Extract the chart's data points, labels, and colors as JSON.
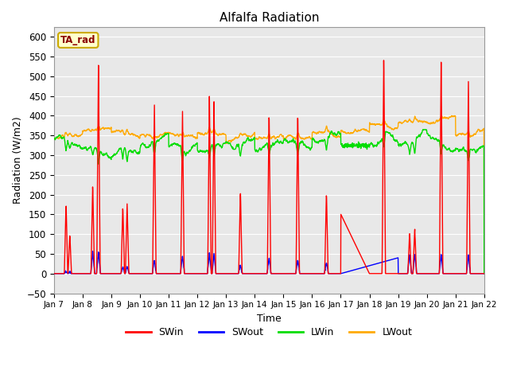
{
  "title": "Alfalfa Radiation",
  "xlabel": "Time",
  "ylabel": "Radiation (W/m2)",
  "ylim": [
    -50,
    625
  ],
  "yticks": [
    -50,
    0,
    50,
    100,
    150,
    200,
    250,
    300,
    350,
    400,
    450,
    500,
    550,
    600
  ],
  "annotation_text": "TA_rad",
  "legend": [
    "SWin",
    "SWout",
    "LWin",
    "LWout"
  ],
  "line_colors": {
    "SWin": "#ff0000",
    "SWout": "#0000ff",
    "LWin": "#00dd00",
    "LWout": "#ffaa00"
  },
  "line_widths": {
    "SWin": 1.0,
    "SWout": 1.0,
    "LWin": 1.0,
    "LWout": 1.0
  },
  "xtick_labels": [
    "Jan 7",
    "Jan 8",
    "Jan 9",
    "Jan 10",
    "Jan 11",
    "Jan 12",
    "Jan 13",
    "Jan 14",
    "Jan 15",
    "Jan 16",
    "Jan 17",
    "Jan 18",
    "Jan 19",
    "Jan 20",
    "Jan 21",
    "Jan 22"
  ],
  "plot_bg_color": "#e8e8e8",
  "fig_bg_color": "#ffffff",
  "grid_color": "#ffffff",
  "n_days": 15,
  "ppd": 144
}
